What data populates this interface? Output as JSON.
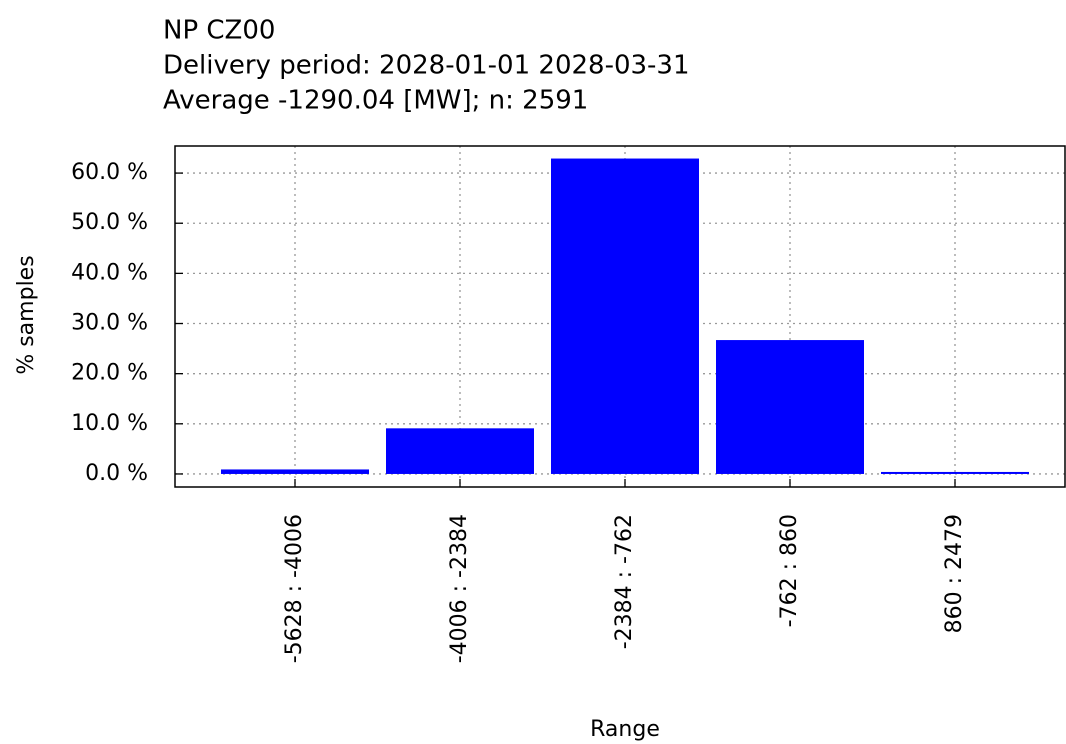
{
  "chart_data": {
    "type": "bar",
    "title": "NP CZ00",
    "subtitle": [
      "Delivery period: 2028-01-01 2028-03-31",
      "Average -1290.04 [MW]; n: 2591"
    ],
    "xlabel": "Range",
    "ylabel": "% samples",
    "categories": [
      "-5628 : -4006",
      "-4006 : -2384",
      "-2384 : -762",
      "-762 : 860",
      "860 : 2479"
    ],
    "values": [
      0.9,
      9.1,
      62.9,
      26.7,
      0.4
    ],
    "color": "#0000ff",
    "ylim": [
      -2.6,
      65.4
    ],
    "yticks": [
      {
        "value": 0,
        "label": "0.0 %"
      },
      {
        "value": 10,
        "label": "10.0 %"
      },
      {
        "value": 20,
        "label": "20.0 %"
      },
      {
        "value": 30,
        "label": "30.0 %"
      },
      {
        "value": 40,
        "label": "40.0 %"
      },
      {
        "value": 50,
        "label": "50.0 %"
      },
      {
        "value": 60,
        "label": "60.0 %"
      }
    ],
    "grid": true
  }
}
